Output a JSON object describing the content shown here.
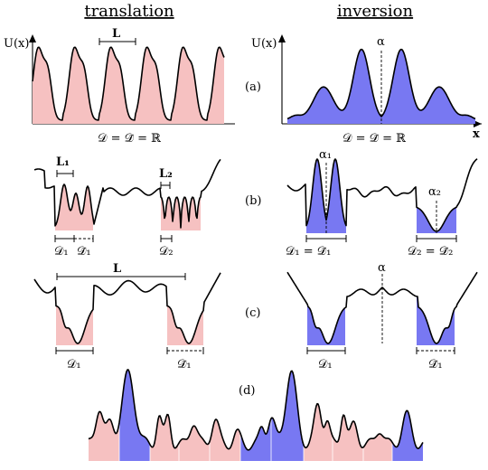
{
  "columns": {
    "left_title": "translation",
    "right_title": "inversion"
  },
  "panels": [
    {
      "id": "a",
      "tag": "(a)"
    },
    {
      "id": "b",
      "tag": "(b)"
    },
    {
      "id": "c",
      "tag": "(c)"
    },
    {
      "id": "d",
      "tag": "(d)"
    }
  ],
  "labels": {
    "potential": "U(x)",
    "x_axis": "x",
    "L": "L",
    "L1": "L₁",
    "L2": "L₂",
    "alpha": "α",
    "alpha1": "α₁",
    "alpha2": "α₂",
    "domain_eq": "𝒟 = 𝒟̃ = ℝ",
    "D1": "𝒟₁",
    "D1_tilde": "𝒟̃₁",
    "D2": "𝒟₂",
    "D1_eq": "𝒟₁ = 𝒟̃₁",
    "D2_eq": "𝒟₂ = 𝒟̃₂"
  },
  "colors": {
    "translation_fill": "#f6c1c1",
    "inversion_fill": "#7878f2",
    "curve": "#000000"
  },
  "icons": [
    "arrow-up-icon",
    "arrow-right-icon"
  ]
}
